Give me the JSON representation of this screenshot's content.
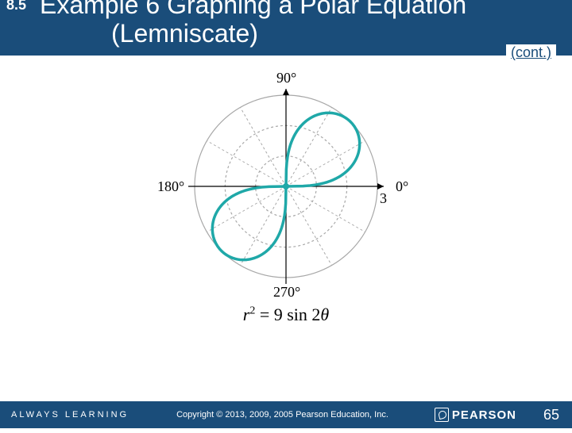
{
  "header": {
    "section": "8.5",
    "title_line1": "Example 6 Graphing a Polar Equation",
    "title_line2": "(Lemniscate)",
    "cont": "(cont.)"
  },
  "chart": {
    "type": "polar-lemniscate",
    "rings": 3,
    "radial_lines": 12,
    "grid_color": "#a8a8a8",
    "curve_color": "#1fa8a8",
    "curve_width": 3.5,
    "background_color": "#ffffff",
    "labels": {
      "top": "90°",
      "right": "0°",
      "bottom": "270°",
      "left": "180°",
      "radius_mark": "3"
    },
    "label_fontsize": 18,
    "center_dot_color": "#1fa8a8",
    "a_squared": 9,
    "lemniscate_points_lobe1": [
      [
        0,
        0
      ],
      [
        30,
        7.8
      ],
      [
        56,
        30.4
      ],
      [
        73.5,
        57
      ],
      [
        81.3,
        81.3
      ],
      [
        78,
        99.6
      ],
      [
        60.7,
        112.9
      ],
      [
        30.4,
        115.2
      ],
      [
        0,
        0
      ]
    ],
    "lemniscate_points_lobe2": [
      [
        0,
        0
      ],
      [
        -30,
        -7.8
      ],
      [
        -56,
        -30.4
      ],
      [
        -73.5,
        -57
      ],
      [
        -81.3,
        -81.3
      ],
      [
        -78,
        -99.6
      ],
      [
        -60.7,
        -112.9
      ],
      [
        -30.4,
        -115.2
      ],
      [
        0,
        0
      ]
    ]
  },
  "equation": {
    "lhs_var": "r",
    "lhs_exp": "2",
    "eq": " = ",
    "rhs_coef": "9 sin 2",
    "rhs_var": "θ"
  },
  "footer": {
    "tagline": "ALWAYS LEARNING",
    "copyright": "Copyright © 2013, 2009, 2005 Pearson Education, Inc.",
    "brand": "PEARSON",
    "page": "65"
  }
}
